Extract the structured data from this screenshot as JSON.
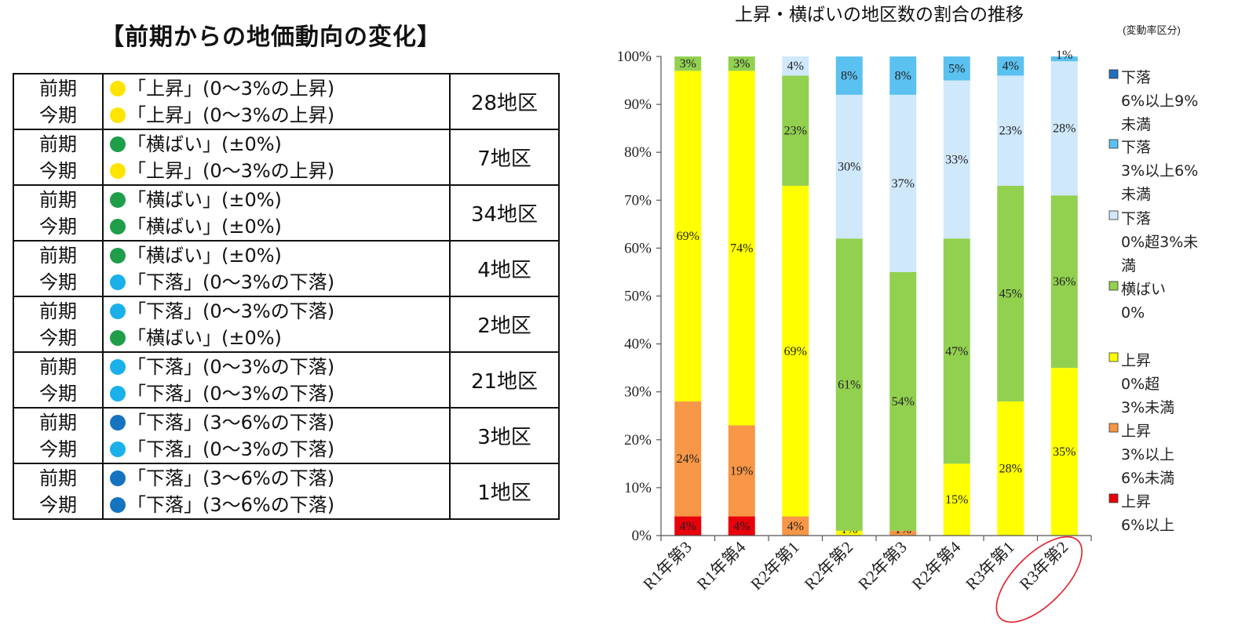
{
  "table": {
    "title": "【前期からの地価動向の変化】",
    "rows": [
      {
        "prev_label": "前期",
        "curr_label": "今期",
        "prev_status": "「上昇」(0〜3%の上昇)",
        "prev_color": "#ffe400",
        "curr_status": "「上昇」(0〜3%の上昇)",
        "curr_color": "#ffe400",
        "count": "28地区"
      },
      {
        "prev_label": "前期",
        "curr_label": "今期",
        "prev_status": "「横ばい」(±0%)",
        "prev_color": "#1e9e49",
        "curr_status": "「上昇」(0〜3%の上昇)",
        "curr_color": "#ffe400",
        "count": "7地区"
      },
      {
        "prev_label": "前期",
        "curr_label": "今期",
        "prev_status": "「横ばい」(±0%)",
        "prev_color": "#1e9e49",
        "curr_status": "「横ばい」(±0%)",
        "curr_color": "#1e9e49",
        "count": "34地区"
      },
      {
        "prev_label": "前期",
        "curr_label": "今期",
        "prev_status": "「横ばい」(±0%)",
        "prev_color": "#1e9e49",
        "curr_status": "「下落」(0〜3%の下落)",
        "curr_color": "#1ab0ea",
        "count": "4地区"
      },
      {
        "prev_label": "前期",
        "curr_label": "今期",
        "prev_status": "「下落」(0〜3%の下落)",
        "prev_color": "#1ab0ea",
        "curr_status": "「横ばい」(±0%)",
        "curr_color": "#1e9e49",
        "count": "2地区"
      },
      {
        "prev_label": "前期",
        "curr_label": "今期",
        "prev_status": "「下落」(0〜3%の下落)",
        "prev_color": "#1ab0ea",
        "curr_status": "「下落」(0〜3%の下落)",
        "curr_color": "#1ab0ea",
        "count": "21地区"
      },
      {
        "prev_label": "前期",
        "curr_label": "今期",
        "prev_status": "「下落」(3〜6%の下落)",
        "prev_color": "#1673c0",
        "curr_status": "「下落」(0〜3%の下落)",
        "curr_color": "#1ab0ea",
        "count": "3地区"
      },
      {
        "prev_label": "前期",
        "curr_label": "今期",
        "prev_status": "「下落」(3〜6%の下落)",
        "prev_color": "#1673c0",
        "curr_status": "「下落」(3〜6%の下落)",
        "curr_color": "#1673c0",
        "count": "1地区"
      }
    ]
  },
  "chart_data": {
    "type": "bar",
    "stacked": true,
    "title": "上昇・横ばいの地区数の割合の推移",
    "subtitle": "(変動率区分)",
    "categories": [
      "R1年第3",
      "R1年第4",
      "R2年第1",
      "R2年第2",
      "R2年第3",
      "R2年第4",
      "R3年第1",
      "R3年第2"
    ],
    "highlighted_category": "R3年第2",
    "ylim": [
      0,
      100
    ],
    "yticks": [
      "0%",
      "10%",
      "20%",
      "30%",
      "40%",
      "50%",
      "60%",
      "70%",
      "80%",
      "90%",
      "100%"
    ],
    "series": [
      {
        "name": "上昇 6%以上",
        "legend_lines": [
          "上昇",
          "6%以上"
        ],
        "color": "#e8000b",
        "values": [
          4,
          4,
          0,
          0,
          0,
          0,
          0,
          0
        ],
        "labels": [
          "4%",
          "4%",
          "",
          "",
          "",
          "",
          "",
          ""
        ]
      },
      {
        "name": "上昇 3%以上6%未満",
        "legend_lines": [
          "上昇",
          "3%以上",
          "6%未満"
        ],
        "color": "#f79646",
        "values": [
          24,
          19,
          4,
          0,
          1,
          0,
          0,
          0
        ],
        "labels": [
          "24%",
          "19%",
          "4%",
          "",
          "1%",
          "",
          "",
          ""
        ]
      },
      {
        "name": "上昇 0%超3%未満",
        "legend_lines": [
          "上昇",
          "0%超",
          "3%未満"
        ],
        "color": "#ffff00",
        "values": [
          69,
          74,
          69,
          1,
          0,
          15,
          28,
          35
        ],
        "labels": [
          "69%",
          "74%",
          "69%",
          "1%",
          "",
          "15%",
          "28%",
          "35%"
        ]
      },
      {
        "name": "横ばい 0%",
        "legend_lines": [
          "横ばい",
          "0%"
        ],
        "color": "#92d050",
        "values": [
          3,
          3,
          23,
          61,
          54,
          47,
          45,
          36
        ],
        "labels": [
          "3%",
          "3%",
          "23%",
          "61%",
          "54%",
          "47%",
          "45%",
          "36%"
        ]
      },
      {
        "name": "下落 0%超3%未満",
        "legend_lines": [
          "下落",
          "0%超3%未",
          "満"
        ],
        "color": "#cfe8fb",
        "values": [
          0,
          0,
          4,
          30,
          37,
          33,
          23,
          28
        ],
        "labels": [
          "",
          "",
          "4%",
          "30%",
          "37%",
          "33%",
          "23%",
          "28%"
        ]
      },
      {
        "name": "下落 3%以上6%未満",
        "legend_lines": [
          "下落",
          "3%以上6%",
          "未満"
        ],
        "color": "#5bc1f0",
        "values": [
          0,
          0,
          0,
          8,
          8,
          5,
          4,
          1
        ],
        "labels": [
          "",
          "",
          "",
          "8%",
          "8%",
          "5%",
          "4%",
          "1%"
        ]
      },
      {
        "name": "下落 6%以上9%未満",
        "legend_lines": [
          "下落",
          "6%以上9%",
          "未満"
        ],
        "color": "#1f6fbf",
        "values": [
          0,
          0,
          0,
          0,
          0,
          0,
          0,
          0
        ],
        "labels": [
          "",
          "",
          "",
          "",
          "",
          "",
          "",
          ""
        ]
      }
    ]
  }
}
